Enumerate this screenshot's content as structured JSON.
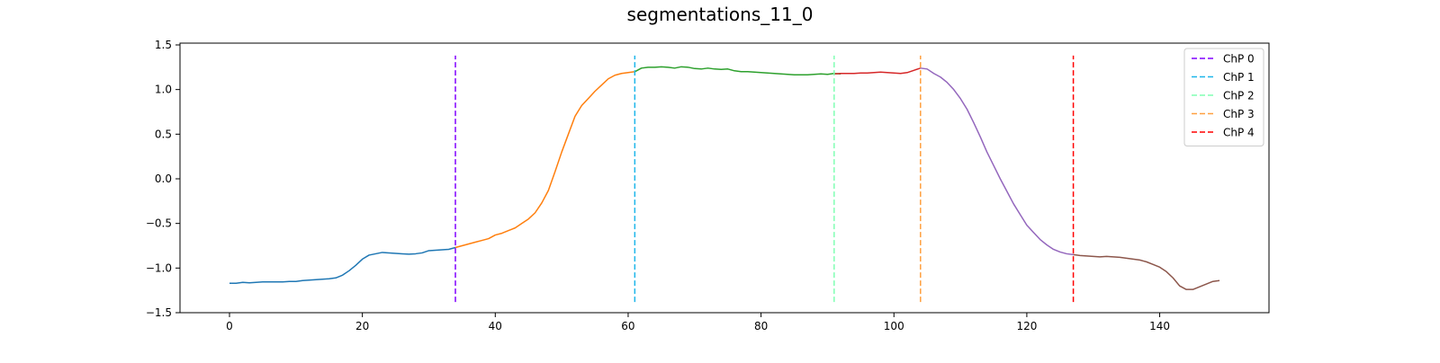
{
  "chart_data": {
    "type": "line",
    "title": "segmentations_11_0",
    "xlabel": "",
    "ylabel": "",
    "xlim": [
      -7.45,
      156.45
    ],
    "ylim": [
      -1.5,
      1.52
    ],
    "grid": false,
    "legend_placement": "top-right",
    "x_ticks": [
      0,
      20,
      40,
      60,
      80,
      100,
      120,
      140
    ],
    "y_ticks": [
      -1.5,
      -1.0,
      -0.5,
      0.0,
      0.5,
      1.0,
      1.5
    ],
    "y_tick_labels": [
      "−1.5",
      "−1.0",
      "−0.5",
      "0.0",
      "0.5",
      "1.0",
      "1.5"
    ],
    "series": [
      {
        "color": "#1f77b4",
        "x_start": 0,
        "values": [
          -1.17,
          -1.17,
          -1.16,
          -1.165,
          -1.16,
          -1.155,
          -1.155,
          -1.155,
          -1.155,
          -1.15,
          -1.15,
          -1.14,
          -1.135,
          -1.13,
          -1.125,
          -1.12,
          -1.11,
          -1.08,
          -1.03,
          -0.97,
          -0.9,
          -0.855,
          -0.84,
          -0.825,
          -0.83,
          -0.835,
          -0.84,
          -0.845,
          -0.84,
          -0.83,
          -0.805,
          -0.8,
          -0.795,
          -0.79,
          -0.77
        ]
      },
      {
        "color": "#ff7f0e",
        "x_start": 34,
        "values": [
          -0.77,
          -0.75,
          -0.73,
          -0.71,
          -0.69,
          -0.67,
          -0.63,
          -0.61,
          -0.58,
          -0.55,
          -0.5,
          -0.45,
          -0.38,
          -0.27,
          -0.13,
          0.08,
          0.3,
          0.5,
          0.7,
          0.82,
          0.9,
          0.98,
          1.05,
          1.12,
          1.16,
          1.18,
          1.19,
          1.2
        ]
      },
      {
        "color": "#2ca02c",
        "x_start": 61,
        "values": [
          1.2,
          1.24,
          1.25,
          1.25,
          1.255,
          1.25,
          1.24,
          1.255,
          1.25,
          1.235,
          1.23,
          1.24,
          1.23,
          1.225,
          1.23,
          1.21,
          1.2,
          1.2,
          1.195,
          1.19,
          1.185,
          1.18,
          1.175,
          1.17,
          1.165,
          1.165,
          1.165,
          1.17,
          1.175,
          1.17,
          1.18,
          1.175
        ]
      },
      {
        "color": "#d62728",
        "x_start": 91,
        "values": [
          1.175,
          1.18,
          1.18,
          1.18,
          1.185,
          1.185,
          1.19,
          1.195,
          1.19,
          1.185,
          1.18,
          1.19,
          1.215,
          1.24
        ]
      },
      {
        "color": "#9467bd",
        "x_start": 104,
        "values": [
          1.24,
          1.23,
          1.18,
          1.14,
          1.08,
          1.0,
          0.9,
          0.78,
          0.63,
          0.47,
          0.3,
          0.15,
          0.0,
          -0.14,
          -0.28,
          -0.4,
          -0.52,
          -0.6,
          -0.68,
          -0.74,
          -0.79,
          -0.82,
          -0.84,
          -0.85
        ]
      },
      {
        "color": "#8c564b",
        "x_start": 127,
        "values": [
          -0.85,
          -0.86,
          -0.865,
          -0.87,
          -0.875,
          -0.87,
          -0.875,
          -0.88,
          -0.89,
          -0.9,
          -0.91,
          -0.93,
          -0.96,
          -0.99,
          -1.04,
          -1.11,
          -1.2,
          -1.24,
          -1.24,
          -1.21,
          -1.18,
          -1.15,
          -1.14
        ]
      }
    ],
    "changepoints": [
      {
        "name": "ChP 0",
        "x": 34,
        "color": "#8000ff"
      },
      {
        "name": "ChP 1",
        "x": 61,
        "color": "#1cb6ea"
      },
      {
        "name": "ChP 2",
        "x": 91,
        "color": "#80ffb4"
      },
      {
        "name": "ChP 3",
        "x": 104,
        "color": "#ffa040"
      },
      {
        "name": "ChP 4",
        "x": 127,
        "color": "#ff0000"
      }
    ],
    "changepoint_yrange": [
      -1.38,
      1.38
    ]
  }
}
